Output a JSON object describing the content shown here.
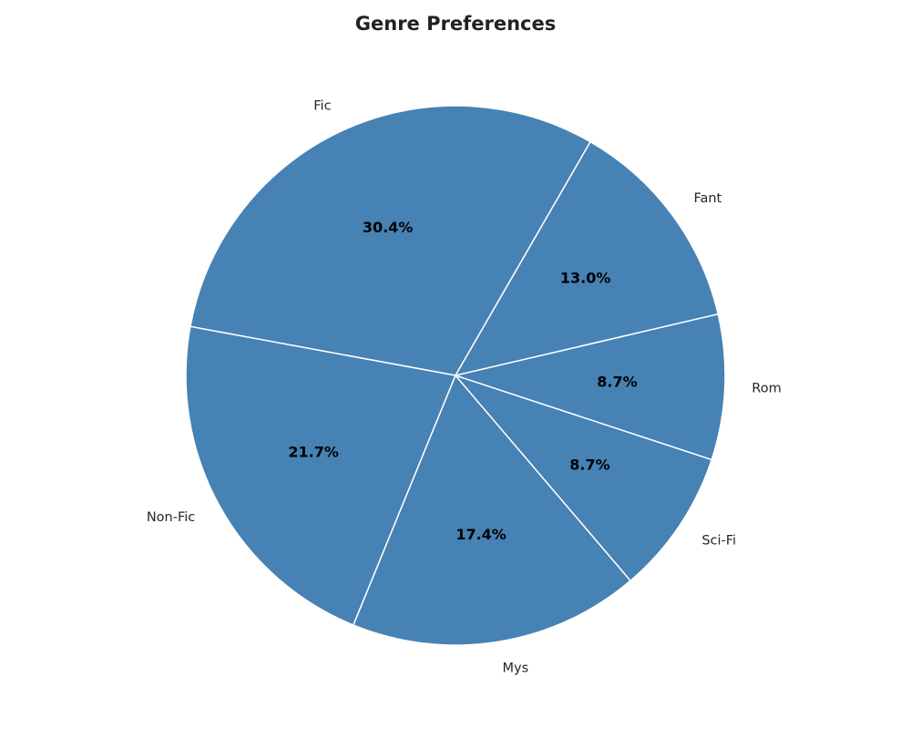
{
  "chart_data": {
    "type": "pie",
    "title": "Genre Preferences",
    "categories": [
      "Fic",
      "Non-Fic",
      "Mys",
      "Sci-Fi",
      "Rom",
      "Fant"
    ],
    "values": [
      30.4,
      21.7,
      17.4,
      8.7,
      8.7,
      13.0
    ],
    "percent_labels": [
      "30.4%",
      "21.7%",
      "17.4%",
      "8.7%",
      "8.7%",
      "13.0%"
    ],
    "start_angle_deg": 60,
    "direction": "counterclockwise",
    "colors": {
      "slice": "#4682b4",
      "edge": "#ffffff"
    },
    "legend": "none"
  }
}
